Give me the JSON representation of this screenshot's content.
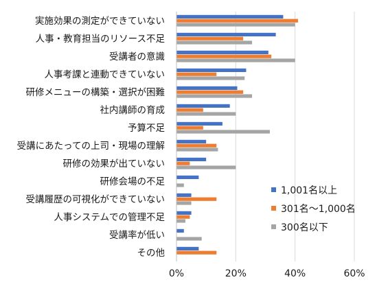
{
  "chart_data": {
    "type": "bar",
    "orientation": "horizontal",
    "categories": [
      "実施効果の測定ができていない",
      "人事・教育担当のリソース不足",
      "受講者の意識",
      "人事考課と連動できていない",
      "研修メニューの構築・選択が困難",
      "社内講師の育成",
      "予算不足",
      "受講にあたっての上司・現場の理解",
      "研修の効果が出ていない",
      "研修会場の不足",
      "受講履歴の可視化ができていない",
      "人事システムでの管理不足",
      "受講率が低い",
      "その他"
    ],
    "series": [
      {
        "name": "1,001名以上",
        "color": "#4472C4",
        "values": [
          36,
          33.5,
          31,
          23.5,
          20.5,
          18,
          15.5,
          10,
          10,
          7.5,
          5,
          5,
          2.5,
          7.5
        ]
      },
      {
        "name": "301名～1,000名",
        "color": "#ED7D31",
        "values": [
          41,
          22.5,
          32,
          13.5,
          22.5,
          9,
          9,
          13.5,
          4.5,
          0,
          13.5,
          4.5,
          0,
          13.5
        ]
      },
      {
        "name": "300名以下",
        "color": "#A5A5A5",
        "values": [
          40,
          25.5,
          40,
          23,
          25.5,
          20,
          31.5,
          14,
          20,
          2.5,
          5,
          3,
          8.5,
          0
        ]
      }
    ],
    "xlim": [
      0,
      60
    ],
    "x_ticks": [
      "0%",
      "20%",
      "40%",
      "60%"
    ],
    "tick_values": [
      0,
      20,
      40,
      60
    ],
    "grid": true,
    "legend_position": "lower-right"
  }
}
